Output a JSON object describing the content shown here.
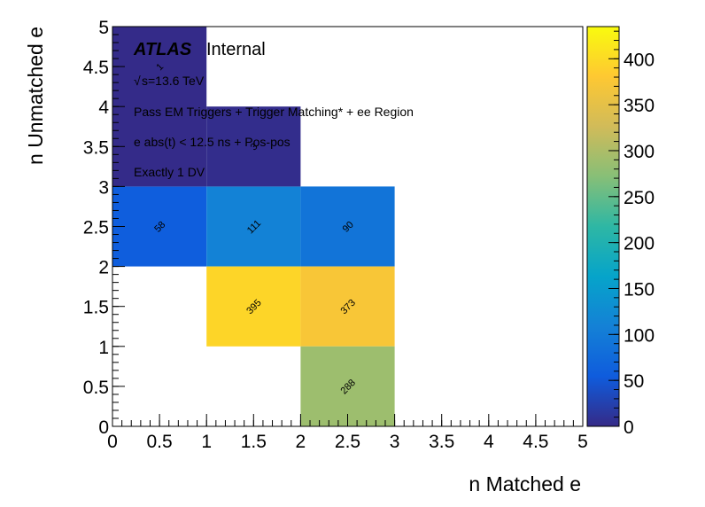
{
  "chart_data": {
    "type": "heatmap",
    "title": "",
    "xlabel": "n Matched e",
    "ylabel": "n Unmatched e",
    "xlim": [
      0,
      5
    ],
    "ylim": [
      0,
      5
    ],
    "xticks": [
      "0",
      "0.5",
      "1",
      "1.5",
      "2",
      "2.5",
      "3",
      "3.5",
      "4",
      "4.5",
      "5"
    ],
    "yticks": [
      "0",
      "0.5",
      "1",
      "1.5",
      "2",
      "2.5",
      "3",
      "3.5",
      "4",
      "4.5",
      "5"
    ],
    "colorbar": {
      "range": [
        0,
        435
      ],
      "ticks": [
        "0",
        "50",
        "100",
        "150",
        "200",
        "250",
        "300",
        "350",
        "400"
      ],
      "palette": [
        "#352a87",
        "#0f5cdd",
        "#1481d6",
        "#06a4ca",
        "#2eb7a4",
        "#87bf77",
        "#d1bb59",
        "#fec832",
        "#f9fb0e"
      ]
    },
    "cells": [
      {
        "x": [
          0,
          1
        ],
        "y": [
          2,
          3
        ],
        "value": 58,
        "label": "58"
      },
      {
        "x": [
          1,
          2
        ],
        "y": [
          2,
          3
        ],
        "value": 111,
        "label": "111"
      },
      {
        "x": [
          2,
          3
        ],
        "y": [
          2,
          3
        ],
        "value": 90,
        "label": "90"
      },
      {
        "x": [
          1,
          2
        ],
        "y": [
          1,
          2
        ],
        "value": 395,
        "label": "395"
      },
      {
        "x": [
          2,
          3
        ],
        "y": [
          1,
          2
        ],
        "value": 373,
        "label": "373"
      },
      {
        "x": [
          2,
          3
        ],
        "y": [
          0,
          1
        ],
        "value": 288,
        "label": "288"
      },
      {
        "x": [
          0,
          1
        ],
        "y": [
          3,
          5
        ],
        "value": 1,
        "label": "1"
      },
      {
        "x": [
          1,
          2
        ],
        "y": [
          3,
          4
        ],
        "value": 3,
        "label": "3"
      }
    ],
    "annotations": {
      "atlas": "ATLAS",
      "internal": "Internal",
      "energy": "s=13.6 TeV",
      "triggers": "Pass EM Triggers + Trigger Matching* + ee Region",
      "timing": "e abs(t) < 12.5 ns + Pos-pos",
      "dv": "Exactly 1 DV"
    }
  }
}
